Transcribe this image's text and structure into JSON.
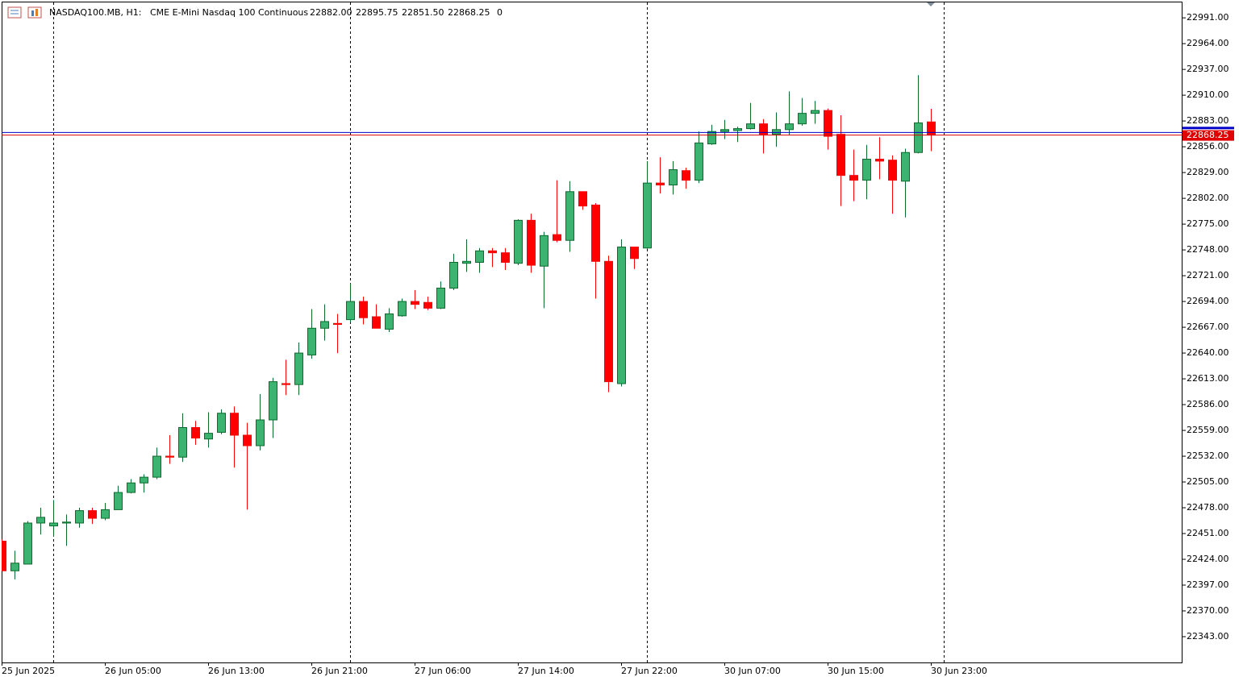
{
  "chart_data": {
    "type": "candlestick",
    "title": "NASDAQ100.MB, H1:",
    "subtitle": "CME E-Mini Nasdaq 100 Continuous",
    "quote_labels": [
      "22882.00",
      "22895.75",
      "22851.50",
      "22868.25",
      "0"
    ],
    "categories": [
      "25 Jun 2025",
      null,
      null,
      null,
      null,
      null,
      null,
      null,
      "26 Jun 05:00",
      null,
      null,
      null,
      null,
      null,
      null,
      null,
      "26 Jun 13:00",
      null,
      null,
      null,
      null,
      null,
      null,
      null,
      "26 Jun 21:00",
      null,
      null,
      null,
      null,
      null,
      null,
      null,
      "27 Jun 06:00",
      null,
      null,
      null,
      null,
      null,
      null,
      null,
      "27 Jun 14:00",
      null,
      null,
      null,
      null,
      null,
      null,
      null,
      "27 Jun 22:00",
      null,
      null,
      null,
      null,
      null,
      null,
      null,
      "30 Jun 07:00",
      null,
      null,
      null,
      null,
      null,
      null,
      null,
      "30 Jun 15:00",
      null,
      null,
      null,
      null,
      null,
      null,
      null,
      "30 Jun 23:00"
    ],
    "open": [
      22443,
      22412,
      22419,
      22462,
      22459,
      22462,
      22462,
      22475,
      22467,
      22476,
      22494,
      22504,
      22510,
      22532,
      22531,
      22562,
      22550,
      22557,
      22577,
      22554,
      22543,
      22570,
      22608,
      22607,
      22638,
      22666,
      22671,
      22675,
      22694,
      22678,
      22665,
      22679,
      22694,
      22693,
      22687,
      22708,
      22734,
      22735,
      22747,
      22745,
      22734,
      22779,
      22731,
      22764,
      22758,
      22809,
      22795,
      22736,
      22608,
      22751,
      22750,
      22818,
      22816,
      22831,
      22821,
      22859,
      22872,
      22873,
      22875,
      22880,
      22869,
      22874,
      22880,
      22891,
      22894,
      22869,
      22826,
      22821,
      22843,
      22842,
      22820,
      22850,
      22882
    ],
    "high": [
      22445,
      22433,
      22464,
      22478,
      22486,
      22471,
      22478,
      22478,
      22483,
      22501,
      22508,
      22513,
      22541,
      22554,
      22577,
      22569,
      22578,
      22581,
      22584,
      22567,
      22597,
      22614,
      22633,
      22651,
      22686,
      22691,
      22681,
      22713,
      22699,
      22691,
      22687,
      22697,
      22706,
      22699,
      22715,
      22744,
      22759,
      22750,
      22750,
      22750,
      22780,
      22786,
      22767,
      22821,
      22820,
      22809,
      22797,
      22742,
      22759,
      22751,
      22841,
      22845,
      22841,
      22834,
      22872,
      22879,
      22884,
      22877,
      22902,
      22885,
      22892,
      22914,
      22907,
      22904,
      22896,
      22889,
      22853,
      22858,
      22866,
      22847,
      22854,
      22931,
      22895.75
    ],
    "low": [
      22412,
      22403,
      22419,
      22450,
      22448,
      22438,
      22457,
      22461,
      22465,
      22476,
      22493,
      22494,
      22508,
      22524,
      22526,
      22544,
      22541,
      22555,
      22520,
      22476,
      22538,
      22551,
      22596,
      22596,
      22634,
      22653,
      22640,
      22672,
      22670,
      22666,
      22662,
      22678,
      22686,
      22685,
      22686,
      22706,
      22725,
      22724,
      22730,
      22727,
      22732,
      22724,
      22687,
      22756,
      22746,
      22790,
      22697,
      22599,
      22605,
      22728,
      22749,
      22807,
      22806,
      22812,
      22818,
      22858,
      22864,
      22861,
      22874,
      22849,
      22856,
      22868,
      22878,
      22880,
      22853,
      22794,
      22799,
      22801,
      22822,
      22786,
      22782,
      22849,
      22851.5
    ],
    "close": [
      22412,
      22420,
      22462,
      22468,
      22462,
      22463,
      22475,
      22467,
      22476,
      22494,
      22504,
      22510,
      22532,
      22531,
      22562,
      22551,
      22556,
      22577,
      22554,
      22543,
      22570,
      22610,
      22607,
      22640,
      22666,
      22673,
      22670,
      22694,
      22677,
      22666,
      22681,
      22694,
      22691,
      22687,
      22708,
      22735,
      22736,
      22747,
      22745,
      22735,
      22779,
      22732,
      22763,
      22758,
      22809,
      22794,
      22736,
      22610,
      22751,
      22739,
      22818,
      22816,
      22832,
      22821,
      22860,
      22872,
      22874,
      22875,
      22880,
      22869,
      22874,
      22880,
      22891,
      22894,
      22867,
      22826,
      22821,
      22843,
      22841,
      22821,
      22850,
      22881,
      22868.25
    ],
    "up_color": "#3cb371",
    "up_edge": "#0b6b2c",
    "down_color": "#ff0000",
    "last_price": 22868.25,
    "last_price_color": "#e00000",
    "ask_price": 22871,
    "ask_color": "#0000c8",
    "ylim": [
      22316,
      23008
    ],
    "yticks": [
      {
        "value": 22343,
        "label": "22343.00"
      },
      {
        "value": 22370,
        "label": "22370.00"
      },
      {
        "value": 22397,
        "label": "22397.00"
      },
      {
        "value": 22424,
        "label": "22424.00"
      },
      {
        "value": 22451,
        "label": "22451.00"
      },
      {
        "value": 22478,
        "label": "22478.00"
      },
      {
        "value": 22505,
        "label": "22505.00"
      },
      {
        "value": 22532,
        "label": "22532.00"
      },
      {
        "value": 22559,
        "label": "22559.00"
      },
      {
        "value": 22586,
        "label": "22586.00"
      },
      {
        "value": 22613,
        "label": "22613.00"
      },
      {
        "value": 22640,
        "label": "22640.00"
      },
      {
        "value": 22667,
        "label": "22667.00"
      },
      {
        "value": 22694,
        "label": "22694.00"
      },
      {
        "value": 22721,
        "label": "22721.00"
      },
      {
        "value": 22748,
        "label": "22748.00"
      },
      {
        "value": 22775,
        "label": "22775.00"
      },
      {
        "value": 22802,
        "label": "22802.00"
      },
      {
        "value": 22829,
        "label": "22829.00"
      },
      {
        "value": 22856,
        "label": "22856.00"
      },
      {
        "value": 22883,
        "label": "22883.00"
      },
      {
        "value": 22910,
        "label": "22910.00"
      },
      {
        "value": 22937,
        "label": "22937.00"
      },
      {
        "value": 22964,
        "label": "22964.00"
      },
      {
        "value": 22991,
        "label": "22991.00"
      }
    ],
    "grid": false
  }
}
